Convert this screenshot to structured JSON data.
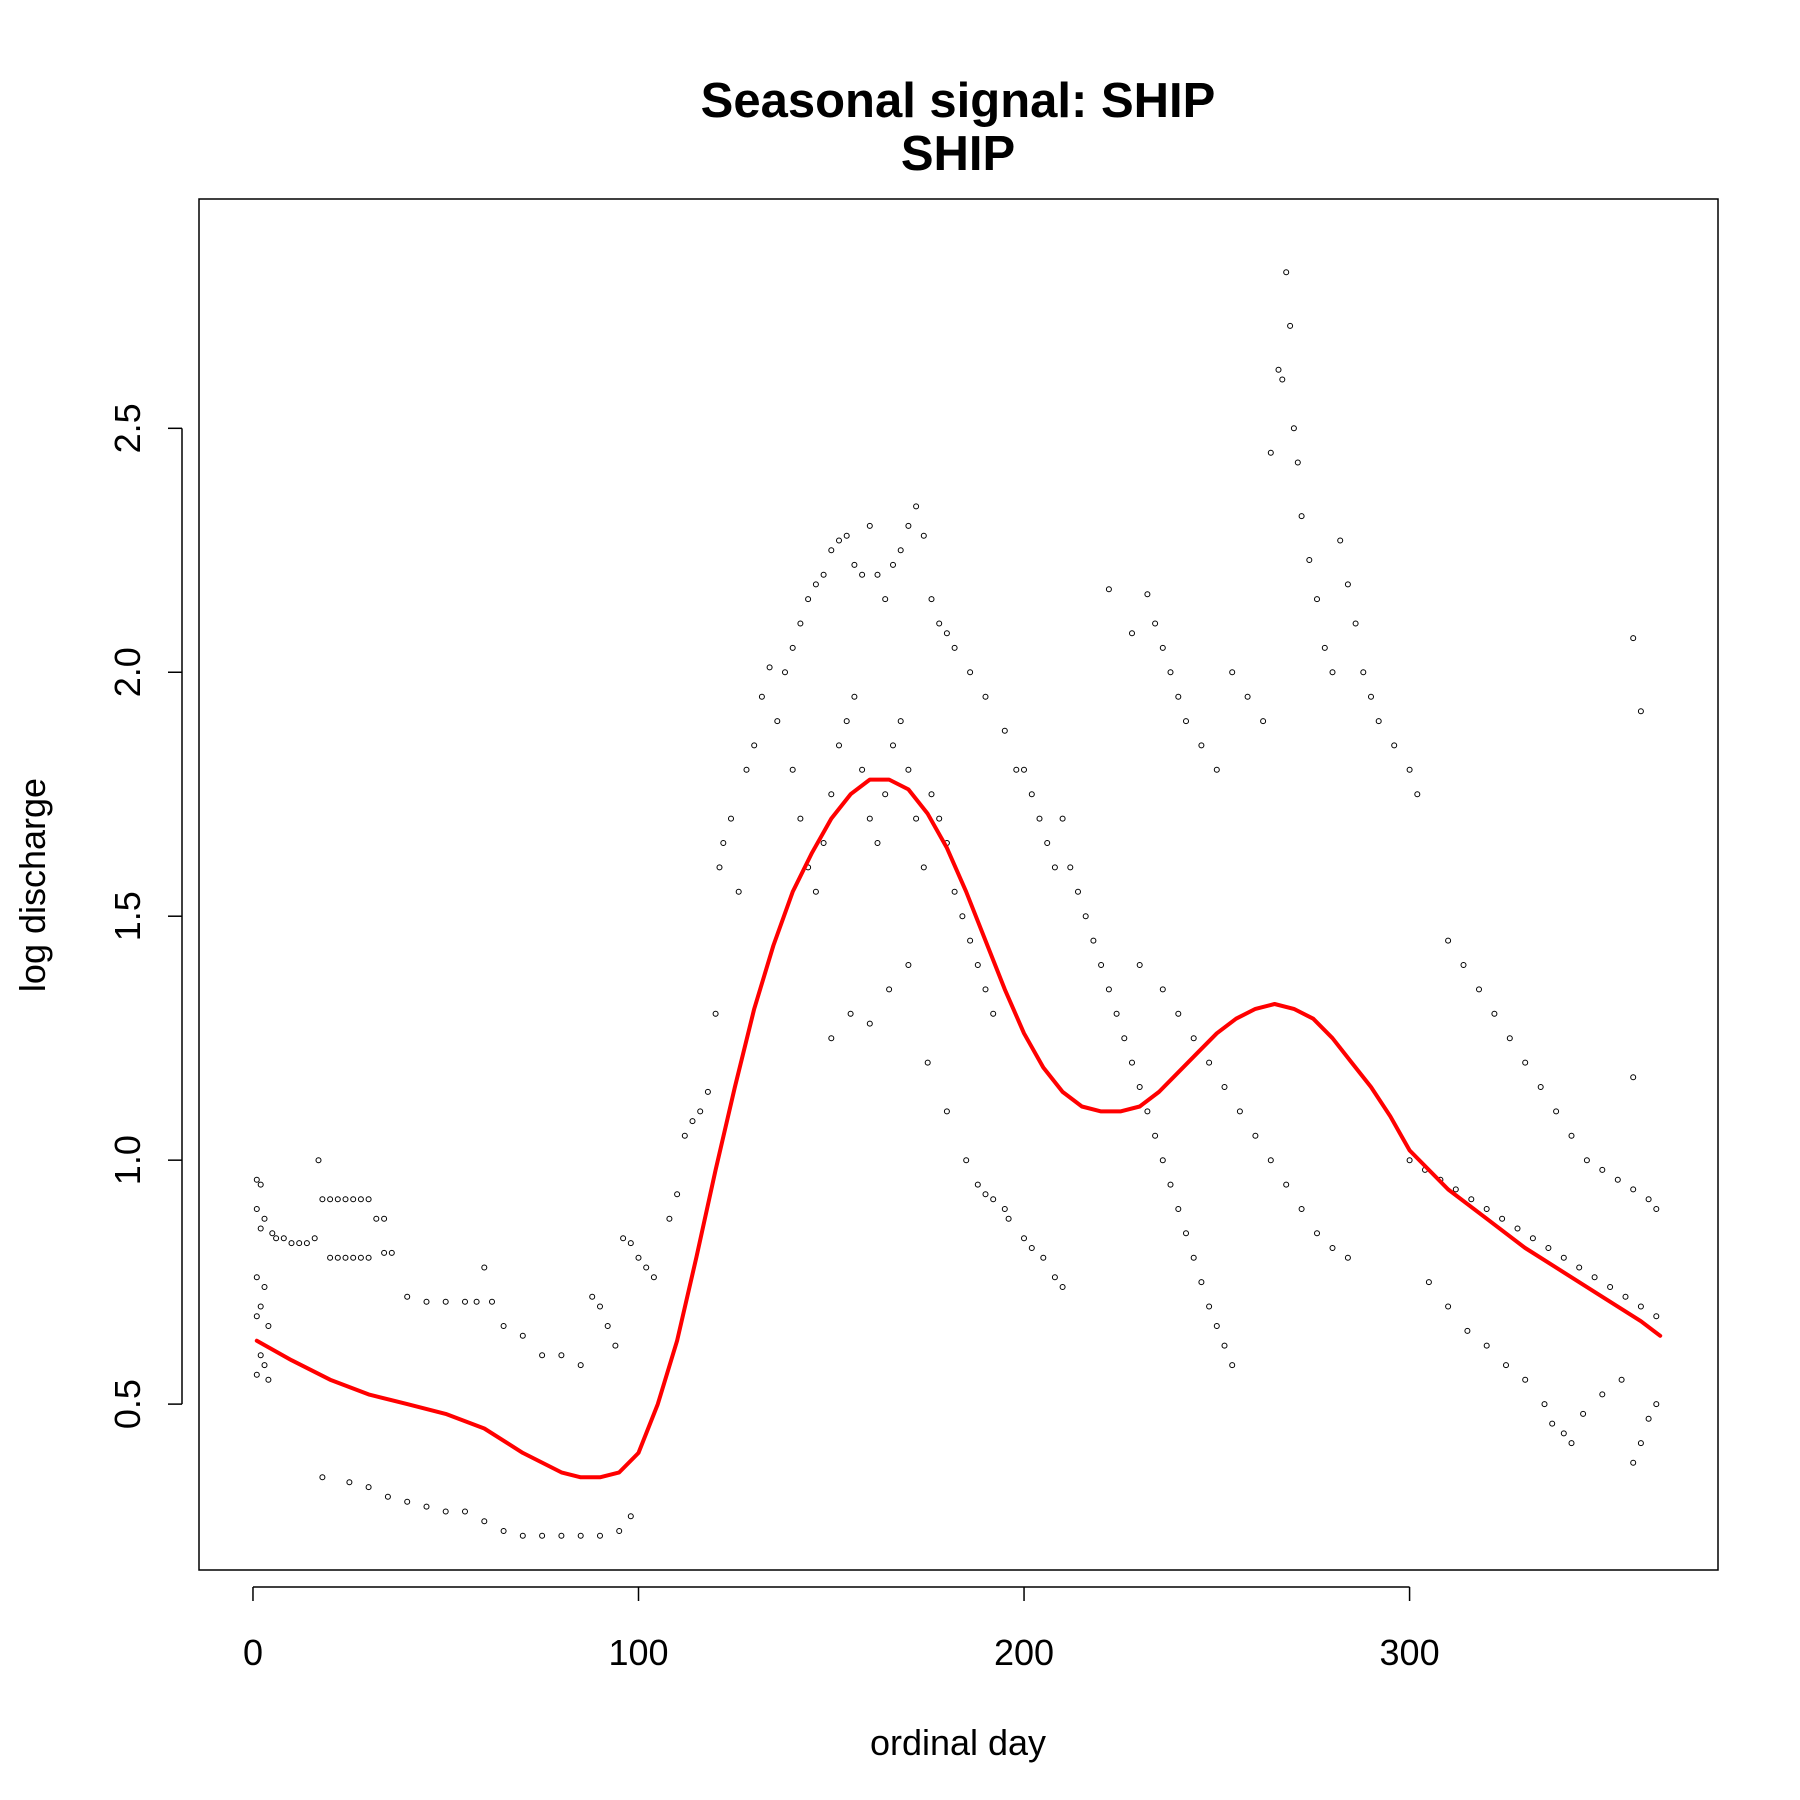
{
  "chart_data": {
    "type": "scatter",
    "title": "Seasonal signal: SHIP",
    "subtitle": "SHIP",
    "xlabel": "ordinal day",
    "ylabel": "log discharge",
    "xlim": [
      -14,
      380
    ],
    "ylim": [
      0.16,
      2.97
    ],
    "x_ticks": [
      0,
      100,
      200,
      300
    ],
    "x_tick_labels": [
      "0",
      "100",
      "200",
      "300"
    ],
    "y_ticks": [
      0.5,
      1.0,
      1.5,
      2.0,
      2.5
    ],
    "y_tick_labels": [
      "0.5",
      "1.0",
      "1.5",
      "2.0",
      "2.5"
    ],
    "grid": false,
    "legend": "none",
    "colors": {
      "points": "#000000",
      "smooth": "#ff0000"
    },
    "points_description_note_free": true,
    "points": [
      [
        1,
        0.96
      ],
      [
        2,
        0.95
      ],
      [
        1,
        0.9
      ],
      [
        3,
        0.88
      ],
      [
        2,
        0.86
      ],
      [
        1,
        0.76
      ],
      [
        3,
        0.74
      ],
      [
        2,
        0.7
      ],
      [
        1,
        0.68
      ],
      [
        4,
        0.66
      ],
      [
        2,
        0.6
      ],
      [
        3,
        0.58
      ],
      [
        1,
        0.56
      ],
      [
        4,
        0.55
      ],
      [
        5,
        0.85
      ],
      [
        6,
        0.84
      ],
      [
        8,
        0.84
      ],
      [
        10,
        0.83
      ],
      [
        12,
        0.83
      ],
      [
        14,
        0.83
      ],
      [
        16,
        0.84
      ],
      [
        17,
        1.0
      ],
      [
        18,
        0.92
      ],
      [
        20,
        0.92
      ],
      [
        22,
        0.92
      ],
      [
        24,
        0.92
      ],
      [
        26,
        0.92
      ],
      [
        28,
        0.92
      ],
      [
        30,
        0.92
      ],
      [
        32,
        0.88
      ],
      [
        34,
        0.88
      ],
      [
        20,
        0.8
      ],
      [
        22,
        0.8
      ],
      [
        24,
        0.8
      ],
      [
        26,
        0.8
      ],
      [
        28,
        0.8
      ],
      [
        30,
        0.8
      ],
      [
        34,
        0.81
      ],
      [
        36,
        0.81
      ],
      [
        18,
        0.35
      ],
      [
        25,
        0.34
      ],
      [
        30,
        0.33
      ],
      [
        35,
        0.31
      ],
      [
        40,
        0.3
      ],
      [
        45,
        0.29
      ],
      [
        50,
        0.28
      ],
      [
        55,
        0.28
      ],
      [
        60,
        0.26
      ],
      [
        65,
        0.24
      ],
      [
        70,
        0.23
      ],
      [
        75,
        0.23
      ],
      [
        80,
        0.23
      ],
      [
        85,
        0.23
      ],
      [
        90,
        0.23
      ],
      [
        95,
        0.24
      ],
      [
        98,
        0.27
      ],
      [
        40,
        0.72
      ],
      [
        45,
        0.71
      ],
      [
        50,
        0.71
      ],
      [
        55,
        0.71
      ],
      [
        58,
        0.71
      ],
      [
        60,
        0.78
      ],
      [
        62,
        0.71
      ],
      [
        65,
        0.66
      ],
      [
        70,
        0.64
      ],
      [
        75,
        0.6
      ],
      [
        80,
        0.6
      ],
      [
        85,
        0.58
      ],
      [
        88,
        0.72
      ],
      [
        90,
        0.7
      ],
      [
        92,
        0.66
      ],
      [
        94,
        0.62
      ],
      [
        96,
        0.84
      ],
      [
        98,
        0.83
      ],
      [
        100,
        0.8
      ],
      [
        102,
        0.78
      ],
      [
        104,
        0.76
      ],
      [
        108,
        0.88
      ],
      [
        110,
        0.93
      ],
      [
        112,
        1.05
      ],
      [
        114,
        1.08
      ],
      [
        116,
        1.1
      ],
      [
        118,
        1.14
      ],
      [
        120,
        1.3
      ],
      [
        121,
        1.6
      ],
      [
        122,
        1.65
      ],
      [
        124,
        1.7
      ],
      [
        126,
        1.55
      ],
      [
        128,
        1.8
      ],
      [
        130,
        1.85
      ],
      [
        132,
        1.95
      ],
      [
        134,
        2.01
      ],
      [
        136,
        1.9
      ],
      [
        138,
        2.0
      ],
      [
        140,
        2.05
      ],
      [
        142,
        2.1
      ],
      [
        144,
        2.15
      ],
      [
        146,
        2.18
      ],
      [
        148,
        2.2
      ],
      [
        150,
        2.25
      ],
      [
        152,
        2.27
      ],
      [
        154,
        2.28
      ],
      [
        156,
        2.22
      ],
      [
        158,
        2.2
      ],
      [
        160,
        2.3
      ],
      [
        162,
        2.2
      ],
      [
        164,
        2.15
      ],
      [
        166,
        2.22
      ],
      [
        168,
        2.25
      ],
      [
        170,
        2.3
      ],
      [
        172,
        2.34
      ],
      [
        174,
        2.28
      ],
      [
        176,
        2.15
      ],
      [
        178,
        2.1
      ],
      [
        180,
        2.08
      ],
      [
        182,
        2.05
      ],
      [
        186,
        2.0
      ],
      [
        190,
        1.95
      ],
      [
        195,
        1.88
      ],
      [
        198,
        1.8
      ],
      [
        140,
        1.8
      ],
      [
        142,
        1.7
      ],
      [
        144,
        1.6
      ],
      [
        146,
        1.55
      ],
      [
        148,
        1.65
      ],
      [
        150,
        1.75
      ],
      [
        152,
        1.85
      ],
      [
        154,
        1.9
      ],
      [
        156,
        1.95
      ],
      [
        158,
        1.8
      ],
      [
        160,
        1.7
      ],
      [
        162,
        1.65
      ],
      [
        164,
        1.75
      ],
      [
        166,
        1.85
      ],
      [
        168,
        1.9
      ],
      [
        170,
        1.8
      ],
      [
        172,
        1.7
      ],
      [
        174,
        1.6
      ],
      [
        176,
        1.75
      ],
      [
        178,
        1.7
      ],
      [
        180,
        1.65
      ],
      [
        182,
        1.55
      ],
      [
        184,
        1.5
      ],
      [
        186,
        1.45
      ],
      [
        188,
        1.4
      ],
      [
        190,
        1.35
      ],
      [
        192,
        1.3
      ],
      [
        150,
        1.25
      ],
      [
        155,
        1.3
      ],
      [
        160,
        1.28
      ],
      [
        165,
        1.35
      ],
      [
        170,
        1.4
      ],
      [
        175,
        1.2
      ],
      [
        180,
        1.1
      ],
      [
        185,
        1.0
      ],
      [
        188,
        0.95
      ],
      [
        190,
        0.93
      ],
      [
        192,
        0.92
      ],
      [
        195,
        0.9
      ],
      [
        196,
        0.88
      ],
      [
        200,
        0.84
      ],
      [
        202,
        0.82
      ],
      [
        205,
        0.8
      ],
      [
        208,
        0.76
      ],
      [
        210,
        0.74
      ],
      [
        200,
        1.8
      ],
      [
        202,
        1.75
      ],
      [
        204,
        1.7
      ],
      [
        206,
        1.65
      ],
      [
        208,
        1.6
      ],
      [
        210,
        1.7
      ],
      [
        212,
        1.6
      ],
      [
        214,
        1.55
      ],
      [
        216,
        1.5
      ],
      [
        218,
        1.45
      ],
      [
        220,
        1.4
      ],
      [
        222,
        1.35
      ],
      [
        224,
        1.3
      ],
      [
        226,
        1.25
      ],
      [
        228,
        1.2
      ],
      [
        230,
        1.15
      ],
      [
        232,
        1.1
      ],
      [
        234,
        1.05
      ],
      [
        236,
        1.0
      ],
      [
        238,
        0.95
      ],
      [
        240,
        0.9
      ],
      [
        242,
        0.85
      ],
      [
        244,
        0.8
      ],
      [
        246,
        0.75
      ],
      [
        248,
        0.7
      ],
      [
        250,
        0.66
      ],
      [
        252,
        0.62
      ],
      [
        254,
        0.58
      ],
      [
        222,
        2.17
      ],
      [
        228,
        2.08
      ],
      [
        232,
        2.16
      ],
      [
        234,
        2.1
      ],
      [
        236,
        2.05
      ],
      [
        238,
        2.0
      ],
      [
        240,
        1.95
      ],
      [
        242,
        1.9
      ],
      [
        246,
        1.85
      ],
      [
        250,
        1.8
      ],
      [
        254,
        2.0
      ],
      [
        258,
        1.95
      ],
      [
        262,
        1.9
      ],
      [
        264,
        2.45
      ],
      [
        266,
        2.62
      ],
      [
        267,
        2.6
      ],
      [
        268,
        2.82
      ],
      [
        269,
        2.71
      ],
      [
        270,
        2.5
      ],
      [
        271,
        2.43
      ],
      [
        272,
        2.32
      ],
      [
        274,
        2.23
      ],
      [
        276,
        2.15
      ],
      [
        278,
        2.05
      ],
      [
        280,
        2.0
      ],
      [
        282,
        2.27
      ],
      [
        284,
        2.18
      ],
      [
        286,
        2.1
      ],
      [
        288,
        2.0
      ],
      [
        290,
        1.95
      ],
      [
        292,
        1.9
      ],
      [
        296,
        1.85
      ],
      [
        300,
        1.8
      ],
      [
        302,
        1.75
      ],
      [
        230,
        1.4
      ],
      [
        236,
        1.35
      ],
      [
        240,
        1.3
      ],
      [
        244,
        1.25
      ],
      [
        248,
        1.2
      ],
      [
        252,
        1.15
      ],
      [
        256,
        1.1
      ],
      [
        260,
        1.05
      ],
      [
        264,
        1.0
      ],
      [
        268,
        0.95
      ],
      [
        272,
        0.9
      ],
      [
        276,
        0.85
      ],
      [
        280,
        0.82
      ],
      [
        284,
        0.8
      ],
      [
        300,
        1.0
      ],
      [
        304,
        0.98
      ],
      [
        308,
        0.96
      ],
      [
        312,
        0.94
      ],
      [
        316,
        0.92
      ],
      [
        320,
        0.9
      ],
      [
        324,
        0.88
      ],
      [
        328,
        0.86
      ],
      [
        332,
        0.84
      ],
      [
        336,
        0.82
      ],
      [
        340,
        0.8
      ],
      [
        344,
        0.78
      ],
      [
        348,
        0.76
      ],
      [
        352,
        0.74
      ],
      [
        356,
        0.72
      ],
      [
        360,
        0.7
      ],
      [
        364,
        0.68
      ],
      [
        310,
        1.45
      ],
      [
        314,
        1.4
      ],
      [
        318,
        1.35
      ],
      [
        322,
        1.3
      ],
      [
        326,
        1.25
      ],
      [
        330,
        1.2
      ],
      [
        334,
        1.15
      ],
      [
        338,
        1.1
      ],
      [
        342,
        1.05
      ],
      [
        346,
        1.0
      ],
      [
        350,
        0.98
      ],
      [
        354,
        0.96
      ],
      [
        358,
        0.94
      ],
      [
        362,
        0.92
      ],
      [
        364,
        0.9
      ],
      [
        305,
        0.75
      ],
      [
        310,
        0.7
      ],
      [
        315,
        0.65
      ],
      [
        320,
        0.62
      ],
      [
        325,
        0.58
      ],
      [
        330,
        0.55
      ],
      [
        335,
        0.5
      ],
      [
        337,
        0.46
      ],
      [
        340,
        0.44
      ],
      [
        342,
        0.42
      ],
      [
        345,
        0.48
      ],
      [
        350,
        0.52
      ],
      [
        355,
        0.55
      ],
      [
        358,
        0.38
      ],
      [
        360,
        0.42
      ],
      [
        362,
        0.47
      ],
      [
        364,
        0.5
      ],
      [
        358,
        2.07
      ],
      [
        360,
        1.92
      ],
      [
        358,
        1.17
      ]
    ],
    "smooth_curve": {
      "x": [
        1,
        10,
        20,
        30,
        40,
        50,
        60,
        70,
        80,
        85,
        90,
        95,
        100,
        105,
        110,
        115,
        120,
        125,
        130,
        135,
        140,
        145,
        150,
        155,
        160,
        165,
        170,
        175,
        180,
        185,
        190,
        195,
        200,
        205,
        210,
        215,
        220,
        225,
        230,
        235,
        240,
        245,
        250,
        255,
        260,
        265,
        270,
        275,
        280,
        285,
        290,
        295,
        300,
        310,
        320,
        330,
        340,
        350,
        360,
        365
      ],
      "y": [
        0.63,
        0.59,
        0.55,
        0.52,
        0.5,
        0.48,
        0.45,
        0.4,
        0.36,
        0.35,
        0.35,
        0.36,
        0.4,
        0.5,
        0.63,
        0.8,
        0.98,
        1.15,
        1.31,
        1.44,
        1.55,
        1.63,
        1.7,
        1.75,
        1.78,
        1.78,
        1.76,
        1.71,
        1.64,
        1.55,
        1.45,
        1.35,
        1.26,
        1.19,
        1.14,
        1.11,
        1.1,
        1.1,
        1.11,
        1.14,
        1.18,
        1.22,
        1.26,
        1.29,
        1.31,
        1.32,
        1.31,
        1.29,
        1.25,
        1.2,
        1.15,
        1.09,
        1.02,
        0.94,
        0.88,
        0.82,
        0.77,
        0.72,
        0.67,
        0.64
      ]
    }
  }
}
